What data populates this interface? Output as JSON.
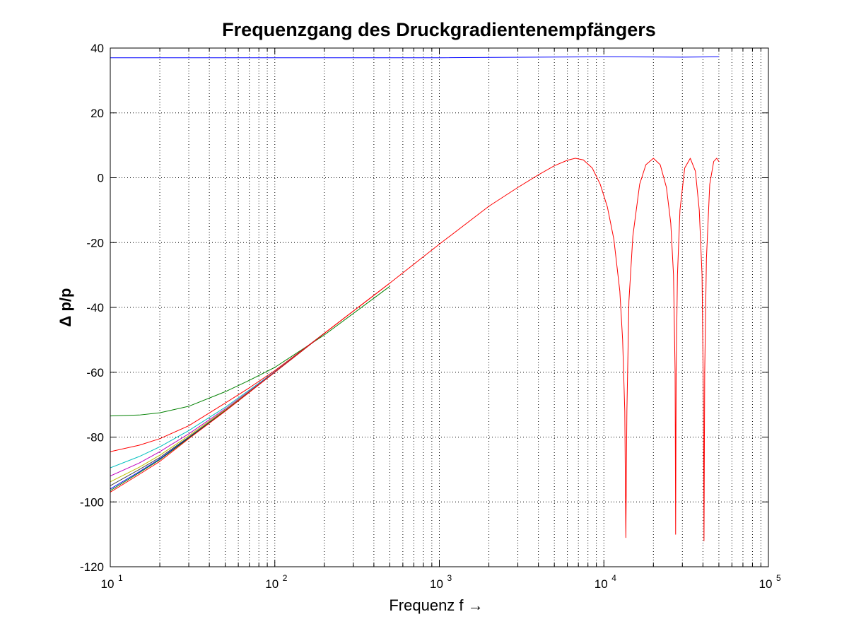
{
  "chart_data": {
    "type": "line",
    "title": "Frequenzgang des Druckgradientenempfängers",
    "xlabel": "Frequenz f →",
    "ylabel": "Δ p/p",
    "xscale": "log",
    "xlim": [
      10,
      100000
    ],
    "ylim": [
      -120,
      40
    ],
    "grid": true,
    "x_ticks": [
      {
        "base": "10",
        "exp": "1"
      },
      {
        "base": "10",
        "exp": "2"
      },
      {
        "base": "10",
        "exp": "3"
      },
      {
        "base": "10",
        "exp": "4"
      },
      {
        "base": "10",
        "exp": "5"
      }
    ],
    "y_ticks": [
      "40",
      "20",
      "0",
      "-20",
      "-40",
      "-60",
      "-80",
      "-100",
      "-120"
    ],
    "series": [
      {
        "color": "#0000ff",
        "x": [
          10,
          100,
          1000,
          10000,
          30000,
          50000
        ],
        "y": [
          37,
          37,
          37,
          37.3,
          37.2,
          37.3
        ]
      },
      {
        "color": "#008000",
        "x": [
          10,
          15,
          20,
          30,
          50,
          70,
          100,
          200,
          500
        ],
        "y": [
          -73.5,
          -73.2,
          -72.5,
          -70.5,
          -66,
          -62.5,
          -58.5,
          -48.5,
          -33.5
        ]
      },
      {
        "color": "#ff0000",
        "x": [
          10,
          15,
          20,
          30,
          50,
          70,
          100,
          200,
          500
        ],
        "y": [
          -84.5,
          -82.5,
          -80.5,
          -76.5,
          -69.5,
          -64.8,
          -59.5,
          -48,
          -32.5
        ]
      },
      {
        "color": "#00bfbf",
        "x": [
          10,
          15,
          20,
          30,
          50,
          70,
          100,
          200
        ],
        "y": [
          -89.5,
          -86,
          -83,
          -78,
          -70.8,
          -65.5,
          -59.8,
          -48
        ]
      },
      {
        "color": "#bf00bf",
        "x": [
          10,
          15,
          20,
          30,
          50,
          70,
          100,
          200
        ],
        "y": [
          -92,
          -88,
          -84.5,
          -79,
          -71.3,
          -65.8,
          -59.9,
          -48
        ]
      },
      {
        "color": "#bfbf00",
        "x": [
          10,
          15,
          20,
          30,
          50,
          70,
          100,
          200
        ],
        "y": [
          -93.8,
          -89.3,
          -85.6,
          -79.6,
          -71.6,
          -66,
          -60,
          -48
        ]
      },
      {
        "color": "#404040",
        "x": [
          10,
          15,
          20,
          30,
          50,
          70,
          100,
          200
        ],
        "y": [
          -95,
          -90,
          -86.3,
          -80,
          -71.8,
          -66.1,
          -60,
          -48
        ]
      },
      {
        "color": "#0000ff",
        "x": [
          10,
          15,
          20,
          30,
          50,
          70,
          100,
          200
        ],
        "y": [
          -96,
          -90.7,
          -86.7,
          -80.2,
          -71.9,
          -66.1,
          -60,
          -48
        ]
      },
      {
        "color": "#008000",
        "x": [
          10,
          15,
          20,
          30,
          50,
          70,
          100,
          200
        ],
        "y": [
          -96.5,
          -91,
          -87,
          -80.3,
          -71.9,
          -66.1,
          -60,
          -48
        ]
      },
      {
        "color": "#ff0000",
        "x": [
          10,
          15,
          20,
          30,
          50,
          70,
          100,
          200,
          500,
          1000,
          2000,
          3000,
          4000,
          5000,
          6000,
          6700,
          7500,
          8500,
          9500,
          10500,
          11500,
          12500,
          13000,
          13400,
          13600,
          13800,
          14200,
          15000,
          16500,
          18000,
          20000,
          22000,
          24000,
          25500,
          26500,
          27100,
          27300,
          27500,
          28000,
          29000,
          31000,
          33500,
          36000,
          38000,
          39500,
          40300,
          40600,
          41000,
          42000,
          44000,
          46500,
          48500,
          50000
        ],
        "y": [
          -97,
          -91.5,
          -87.5,
          -80.5,
          -72,
          -66.2,
          -60,
          -48,
          -32.5,
          -20.5,
          -8.8,
          -3,
          0.9,
          3.7,
          5.4,
          6,
          5.5,
          3,
          -2,
          -9,
          -19,
          -35,
          -50,
          -72,
          -111,
          -72,
          -38,
          -18,
          -2,
          4,
          6,
          4,
          -3,
          -14,
          -30,
          -60,
          -110,
          -60,
          -30,
          -10,
          3,
          6,
          2,
          -10,
          -30,
          -70,
          -112,
          -60,
          -25,
          -2,
          5,
          6,
          5
        ]
      }
    ]
  }
}
